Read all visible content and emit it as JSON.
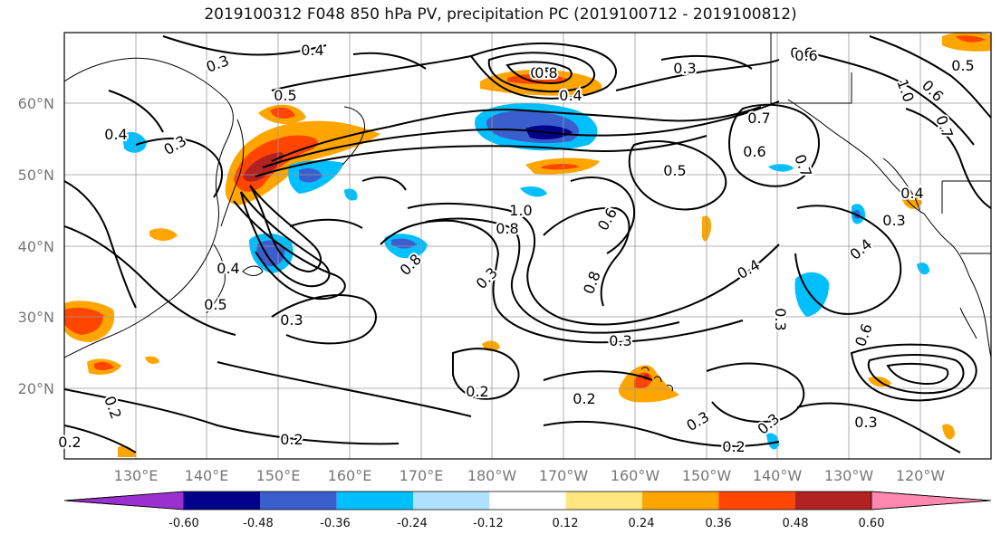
{
  "title": "2019100312 F048 850 hPa PV, precipitation PC (2019100712 - 2019100812)",
  "lat_labels": [
    "60°N",
    "50°N",
    "40°N",
    "30°N",
    "20°N"
  ],
  "lon_labels": [
    "130°E",
    "140°E",
    "150°E",
    "160°E",
    "170°E",
    "180°W",
    "170°W",
    "160°W",
    "150°W",
    "140°W",
    "130°W",
    "120°W"
  ],
  "contour_labels": [
    "0.3",
    "0.4",
    "0.5",
    "0.6",
    "0.7",
    "0.8",
    "1.0",
    "0.3",
    "0.4",
    "0.5",
    "0.6",
    "0.8",
    "1.0",
    "0.3",
    "0.4",
    "0.8",
    "0.3",
    "0.4",
    "0.5",
    "0.3",
    "0.3",
    "0.2",
    "0.2",
    "0.2",
    "0.2",
    "0.2",
    "0.3",
    "0.6",
    "0.7",
    "0.6",
    "0.5",
    "0.4",
    "0.4",
    "0.3",
    "0.6",
    "0.4",
    "0.7",
    "0.5",
    "0.6",
    "0.8",
    "0.3",
    "0.2",
    "0.3",
    "0.3"
  ],
  "colorbar": {
    "colors": [
      "#9b30d0",
      "#00008b",
      "#3a5fcd",
      "#00bfff",
      "#b0e2ff",
      "#ffffff",
      "#ffe680",
      "#ffa500",
      "#ff4500",
      "#b22222",
      "#ff88b0"
    ],
    "tick_labels": [
      "-0.60",
      "-0.48",
      "-0.36",
      "-0.24",
      "-0.12",
      "0.12",
      "0.24",
      "0.36",
      "0.48",
      "0.60"
    ]
  }
}
